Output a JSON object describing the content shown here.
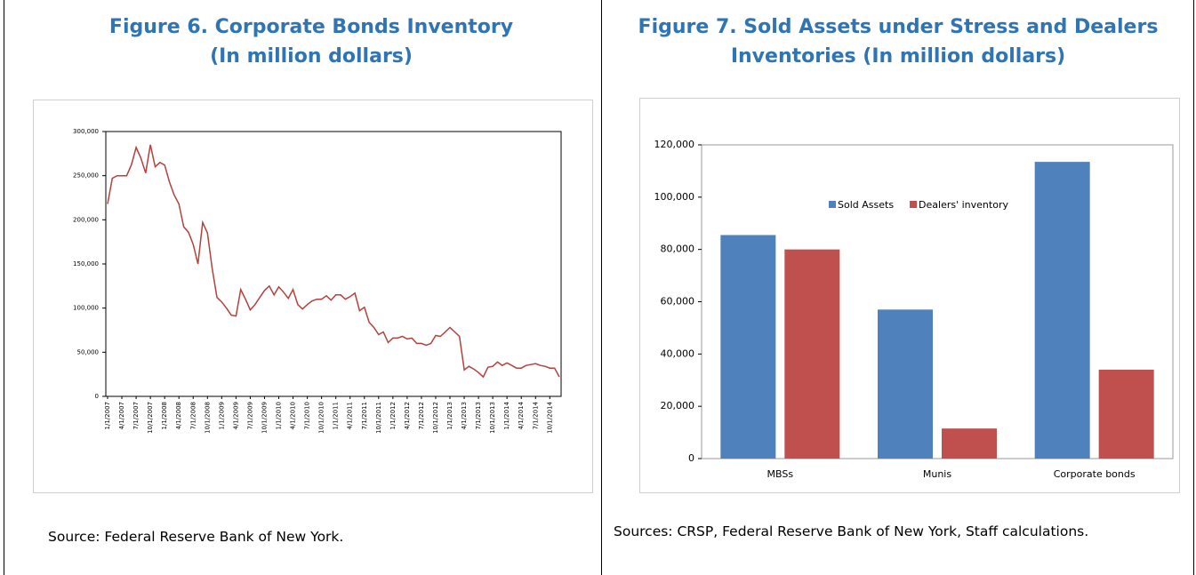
{
  "chart_data": [
    {
      "type": "line",
      "title": [
        "Figure 6. Corporate Bonds Inventory",
        "(In million dollars)"
      ],
      "source": "Source: Federal Reserve Bank of New York.",
      "color": "#b5403c",
      "categories": [
        "1/1/2007",
        null,
        null,
        "4/1/2007",
        null,
        null,
        "7/1/2007",
        null,
        null,
        "10/1/2007",
        null,
        null,
        "1/1/2008",
        null,
        null,
        "4/1/2008",
        null,
        null,
        "7/1/2008",
        null,
        null,
        "10/1/2008",
        null,
        null,
        "1/1/2009",
        null,
        null,
        "4/1/2009",
        null,
        null,
        "7/1/2009",
        null,
        null,
        "10/1/2009",
        null,
        null,
        "1/1/2010",
        null,
        null,
        "4/1/2010",
        null,
        null,
        "7/1/2010",
        null,
        null,
        "10/1/2010",
        null,
        null,
        "1/1/2011",
        null,
        null,
        "4/1/2011",
        null,
        null,
        "7/1/2011",
        null,
        null,
        "10/1/2011",
        null,
        null,
        "1/1/2012",
        null,
        null,
        "4/1/2012",
        null,
        null,
        "7/1/2012",
        null,
        null,
        "10/1/2012",
        null,
        null,
        "1/1/2013",
        null,
        null,
        "4/1/2013",
        null,
        null,
        "7/1/2013",
        null,
        null,
        "10/1/2013",
        null,
        null,
        "1/1/2014",
        null,
        null,
        "4/1/2014",
        null,
        null,
        "7/1/2014",
        null,
        null,
        "10/1/2014",
        null,
        null
      ],
      "values": [
        218000,
        247000,
        250000,
        250000,
        250000,
        262000,
        282000,
        270000,
        253000,
        285000,
        260000,
        265000,
        262000,
        243000,
        228000,
        218000,
        192000,
        186000,
        172000,
        150000,
        197000,
        185000,
        145000,
        112000,
        107000,
        100000,
        92000,
        91000,
        121000,
        110000,
        98000,
        104000,
        112000,
        120000,
        125000,
        115000,
        124000,
        118000,
        111000,
        121000,
        104000,
        99000,
        104000,
        108000,
        110000,
        110000,
        114000,
        109000,
        115000,
        115000,
        110000,
        113000,
        117000,
        97000,
        101000,
        84000,
        78000,
        70000,
        73000,
        61000,
        66000,
        66000,
        68000,
        65000,
        66000,
        60000,
        60000,
        58000,
        60000,
        69000,
        68000,
        73000,
        78000,
        73000,
        68000,
        30000,
        34000,
        31000,
        27000,
        22000,
        33000,
        34000,
        39000,
        35000,
        38000,
        35000,
        32000,
        32000,
        35000,
        36000,
        37000,
        35000,
        34000,
        32000,
        32000,
        22000
      ],
      "ylim": [
        0,
        300000
      ],
      "yticks": [
        0,
        {
          "value": 50000,
          "label": "50,000"
        },
        {
          "value": 100000,
          "label": "100,000"
        },
        {
          "value": 150000,
          "label": "150,000"
        },
        {
          "value": 200000,
          "label": "200,000"
        },
        {
          "value": 250000,
          "label": "250,000"
        },
        {
          "value": 300000,
          "label": "300,000"
        }
      ]
    },
    {
      "type": "bar",
      "title": [
        "Figure 7. Sold Assets under Stress and Dealers",
        "Inventories (In million dollars)"
      ],
      "source": "Sources: CRSP, Federal Reserve Bank of New York, Staff calculations.",
      "categories": [
        "MBSs",
        "Munis",
        "Corporate bonds"
      ],
      "series": [
        {
          "name": "Sold Assets",
          "color": "#4f81bd",
          "values": [
            85500,
            57000,
            113500
          ]
        },
        {
          "name": "Dealers' inventory",
          "color": "#c0504d",
          "values": [
            80000,
            11500,
            34000
          ]
        }
      ],
      "ylim": [
        0,
        120000
      ],
      "yticks": [
        0,
        {
          "value": 20000,
          "label": "20,000"
        },
        {
          "value": 40000,
          "label": "40,000"
        },
        {
          "value": 60000,
          "label": "60,000"
        },
        {
          "value": 80000,
          "label": "80,000"
        },
        {
          "value": 100000,
          "label": "100,000"
        },
        {
          "value": 120000,
          "label": "120,000"
        }
      ],
      "legend": "top"
    }
  ]
}
